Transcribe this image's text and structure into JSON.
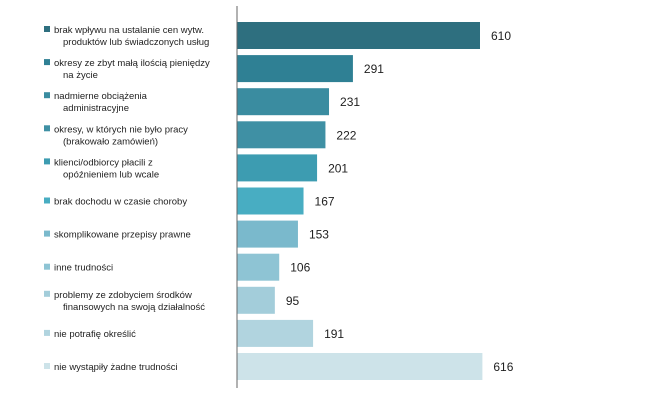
{
  "chart_data": {
    "type": "bar",
    "orientation": "horizontal",
    "categories": [
      [
        "brak wpływu na ustalanie cen wytw.",
        "produktów lub świadczonych usług"
      ],
      [
        "okresy ze zbyt małą ilością pieniędzy",
        "na życie"
      ],
      [
        "nadmierne obciążenia",
        "administracyjne"
      ],
      [
        "okresy, w których nie było pracy",
        "(brakowało zamówień)"
      ],
      [
        "klienci/odbiorcy płacili z",
        "opóźnieniem lub wcale"
      ],
      [
        "brak dochodu w czasie choroby"
      ],
      [
        "skomplikowane przepisy prawne"
      ],
      [
        "inne trudności"
      ],
      [
        "problemy ze zdobyciem środków",
        "finansowych na swoją działalność"
      ],
      [
        "nie potrafię określić"
      ],
      [
        "nie wystąpiły żadne trudności"
      ]
    ],
    "values": [
      610,
      291,
      231,
      222,
      201,
      167,
      153,
      106,
      95,
      191,
      616
    ],
    "colors": [
      "#2e6f7f",
      "#2f8094",
      "#3a8ca0",
      "#3f90a4",
      "#3d9cb1",
      "#48adc2",
      "#7ab9cc",
      "#8ec4d4",
      "#a3cdda",
      "#b1d4df",
      "#cde3e9"
    ],
    "xlim": [
      0,
      650
    ],
    "grid": false,
    "legend": "none"
  }
}
